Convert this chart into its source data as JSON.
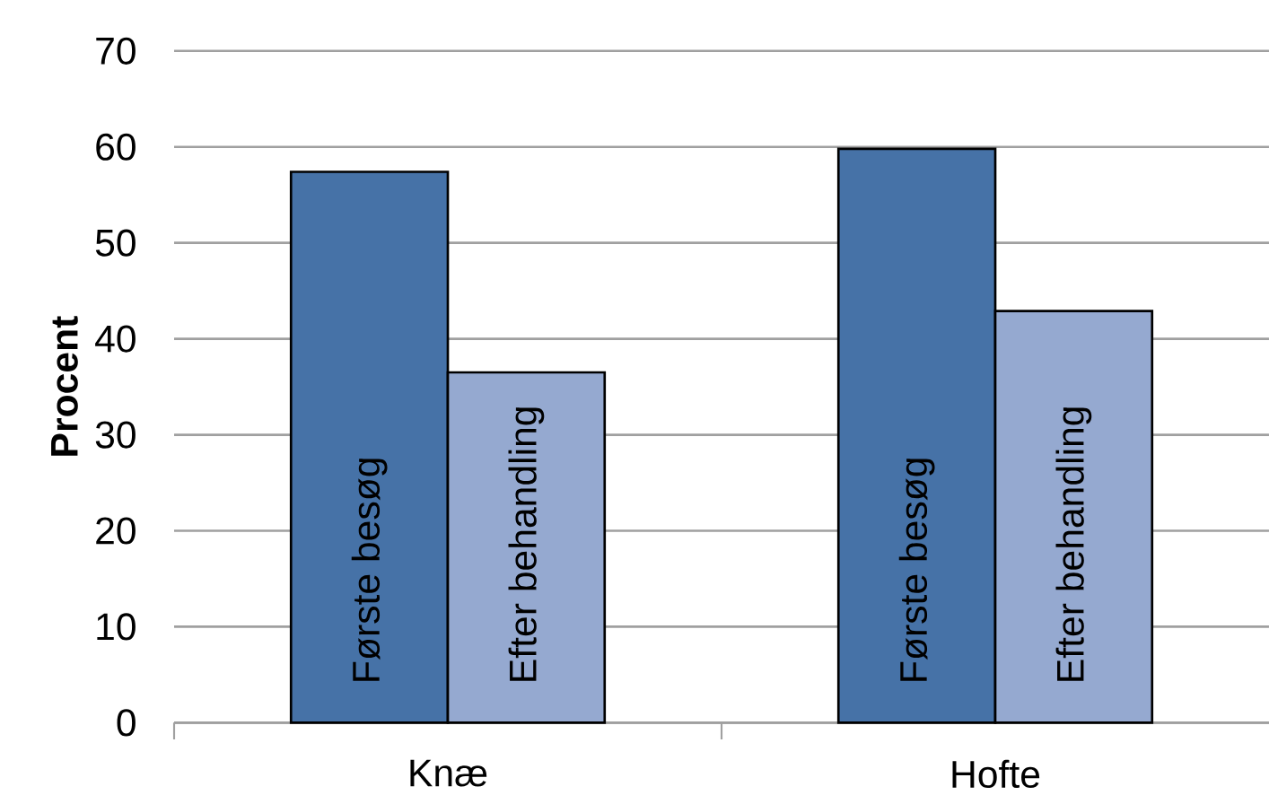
{
  "chart_data": {
    "type": "bar",
    "ylabel": "Procent",
    "categories": [
      "Knæ",
      "Hofte"
    ],
    "series": [
      {
        "name": "Første besøg",
        "color": "#4672a7",
        "values": [
          57.4,
          59.8
        ]
      },
      {
        "name": "Efter behandling",
        "color": "#95a9d0",
        "values": [
          36.5,
          42.9
        ]
      }
    ],
    "ylim": [
      0,
      70
    ],
    "yticks": [
      0,
      10,
      20,
      30,
      40,
      50,
      60,
      70
    ],
    "grid": "y"
  }
}
